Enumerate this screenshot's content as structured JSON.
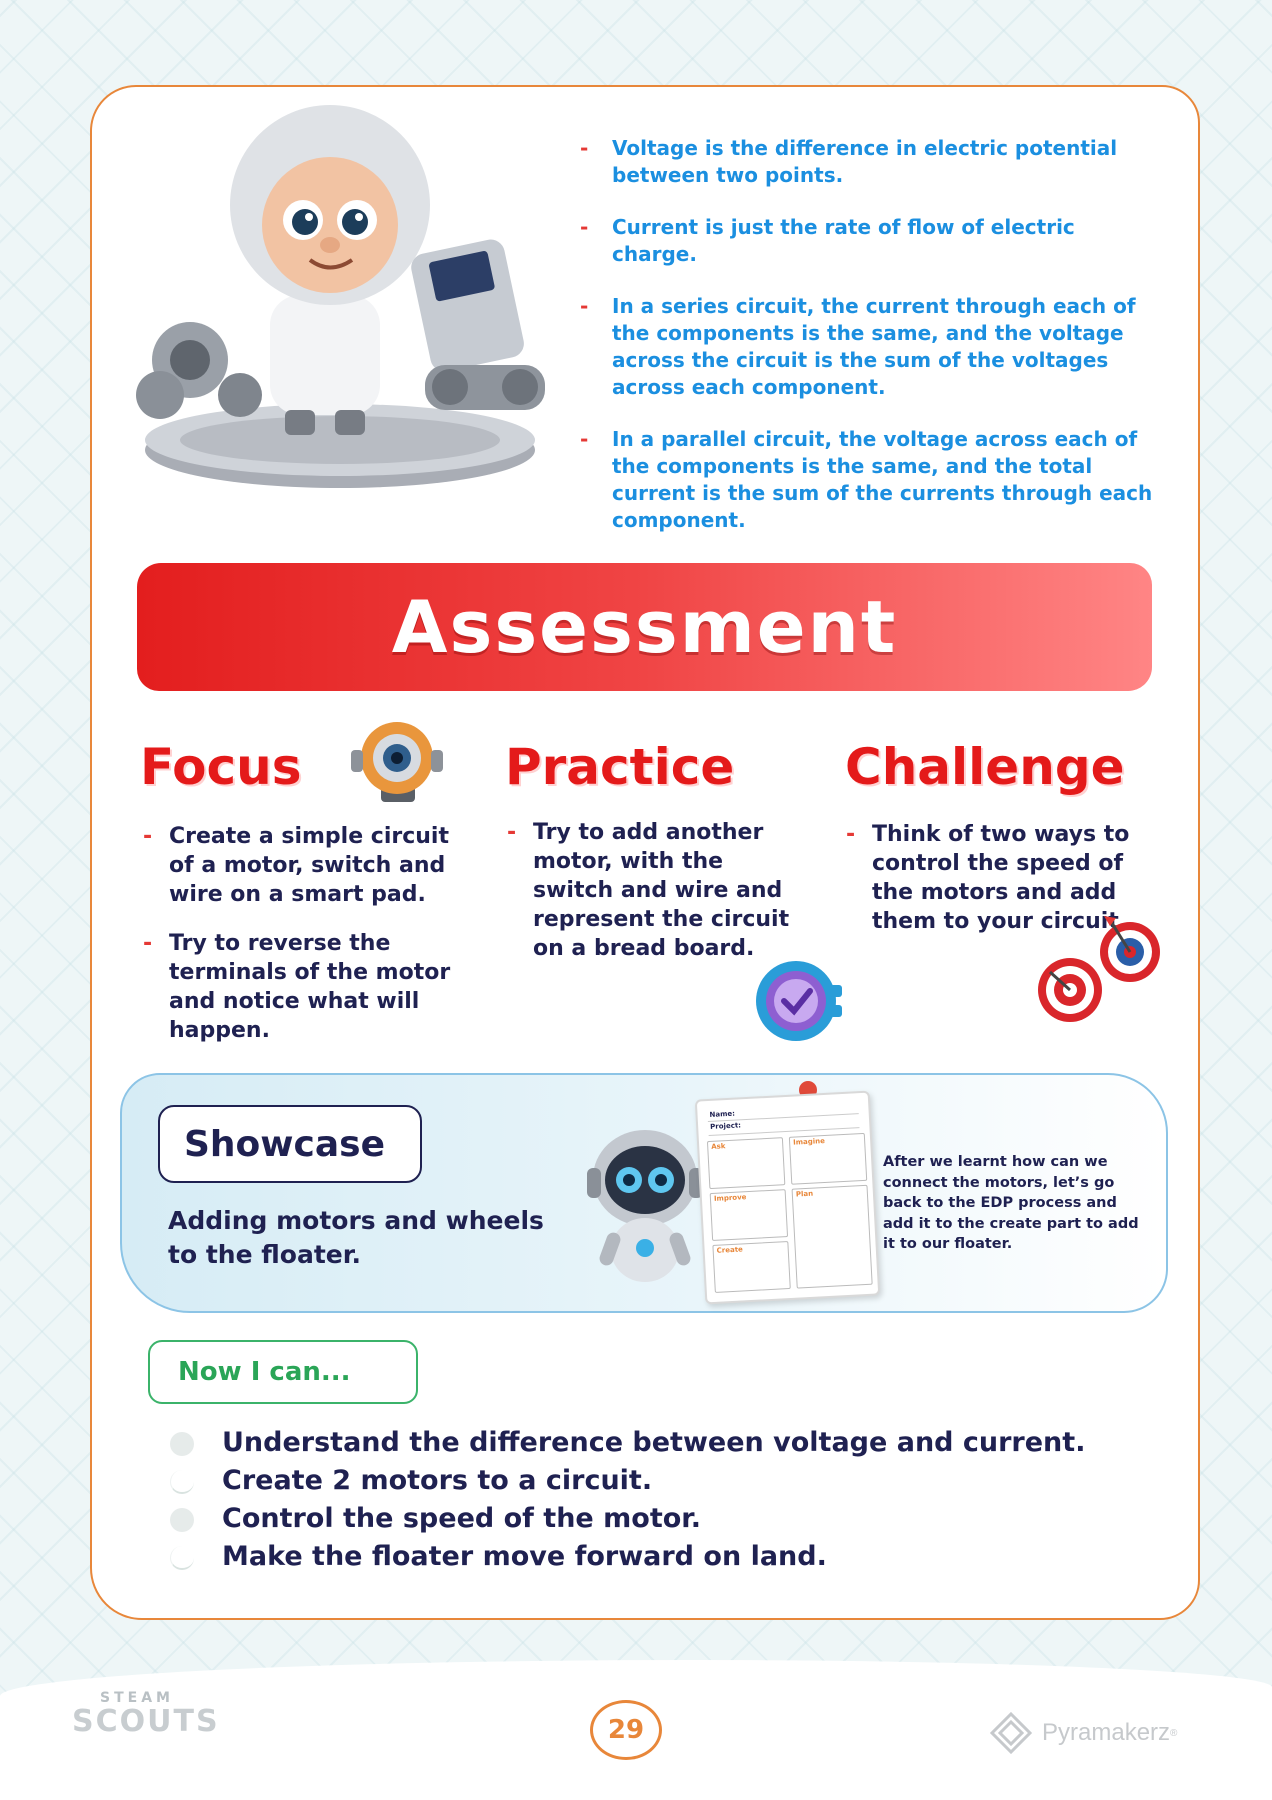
{
  "facts": [
    "Voltage is the difference in electric potential between two points.",
    "Current is just the rate of flow of electric charge.",
    "In a series circuit, the current through each of the components is the same, and the voltage across the circuit is the sum of the voltages across each component.",
    "In a parallel circuit, the voltage across each of the components is the same, and the total current is the sum of the currents through each component."
  ],
  "banner": {
    "title": "Assessment"
  },
  "focus": {
    "title": "Focus",
    "items": [
      "Create a simple circuit of a motor, switch and wire on a smart pad.",
      "Try to reverse the terminals of the motor and notice what will happen."
    ]
  },
  "practice": {
    "title": "Practice",
    "items": [
      "Try to add another motor, with the switch and wire and represent the circuit on a bread board."
    ]
  },
  "challenge": {
    "title": "Challenge",
    "items": [
      "Think of two ways to control the speed of the motors and add them to your circuit."
    ]
  },
  "showcase": {
    "title": "Showcase",
    "text": "Adding motors and wheels to the floater.",
    "note": "After we learnt how can we connect the motors, let’s go back to the EDP process and add it to the create part to add it to our floater.",
    "edp": {
      "name": "Name:",
      "project": "Project:",
      "ask": "Ask",
      "imagine": "Imagine",
      "improve": "Improve",
      "plan": "Plan",
      "create": "Create"
    }
  },
  "nowican": {
    "title": "Now I can...",
    "items": [
      "Understand the difference between voltage and current.",
      "Create 2 motors to a circuit.",
      "Control the speed of the motor.",
      "Make the floater move forward on land."
    ]
  },
  "footer": {
    "logo_top": "STEAM",
    "logo_bottom": "SCOUTS",
    "page_number": "29",
    "brand": "Pyramakerz",
    "brand_mark": "®"
  },
  "colors": {
    "accent_red": "#e41a1a",
    "fact_blue": "#1b8fe0",
    "navy": "#1f2151",
    "orange": "#e8873a",
    "green": "#2aa557"
  }
}
